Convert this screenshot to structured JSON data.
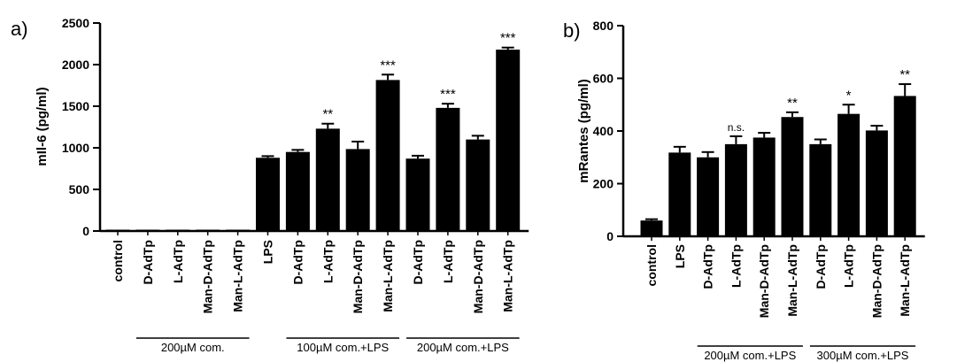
{
  "chart_data": [
    {
      "type": "bar",
      "panel_label": "a)",
      "ylabel": "mIl-6 (pg/ml)",
      "ylim": [
        0,
        2500
      ],
      "yticks": [
        0,
        500,
        1000,
        1500,
        2000,
        2500
      ],
      "categories": [
        "control",
        "D-AdTp",
        "L-AdTp",
        "Man-D-AdTp",
        "Man-L-AdTp",
        "LPS",
        "D-AdTp",
        "L-AdTp",
        "Man-D-AdTp",
        "Man-L-AdTp",
        "D-AdTp",
        "L-AdTp",
        "Man-D-AdTp",
        "Man-L-AdTp"
      ],
      "values": [
        5,
        5,
        5,
        5,
        5,
        880,
        950,
        1230,
        985,
        1815,
        870,
        1480,
        1100,
        2180
      ],
      "errors": [
        5,
        5,
        5,
        5,
        5,
        20,
        25,
        60,
        90,
        65,
        35,
        50,
        45,
        25
      ],
      "significance": [
        "",
        "",
        "",
        "",
        "",
        "",
        "",
        "**",
        "",
        "***",
        "",
        "***",
        "",
        "***"
      ],
      "groups": [
        {
          "label": "200µM com.",
          "start": 1,
          "end": 4
        },
        {
          "label": "100µM com.+LPS",
          "start": 6,
          "end": 9
        },
        {
          "label": "200µM com.+LPS",
          "start": 10,
          "end": 13
        }
      ],
      "colors": {
        "bar": "#000000"
      }
    },
    {
      "type": "bar",
      "panel_label": "b)",
      "ylabel": "mRantes (pg/ml)",
      "ylim": [
        0,
        800
      ],
      "yticks": [
        0,
        200,
        400,
        600,
        800
      ],
      "categories": [
        "control",
        "LPS",
        "D-AdTp",
        "L-AdTp",
        "Man-D-AdTp",
        "Man-L-AdTp",
        "D-AdTp",
        "L-AdTp",
        "Man-D-AdTp",
        "Man-L-AdTp"
      ],
      "values": [
        60,
        318,
        300,
        350,
        375,
        453,
        350,
        465,
        402,
        533
      ],
      "errors": [
        5,
        22,
        20,
        30,
        18,
        18,
        18,
        35,
        18,
        45
      ],
      "significance": [
        "",
        "",
        "",
        "n.s.",
        "",
        "**",
        "",
        "*",
        "",
        "**"
      ],
      "groups": [
        {
          "label": "200µM com.+LPS",
          "start": 2,
          "end": 5
        },
        {
          "label": "300µM com.+LPS",
          "start": 6,
          "end": 9
        }
      ],
      "colors": {
        "bar": "#000000"
      }
    }
  ]
}
